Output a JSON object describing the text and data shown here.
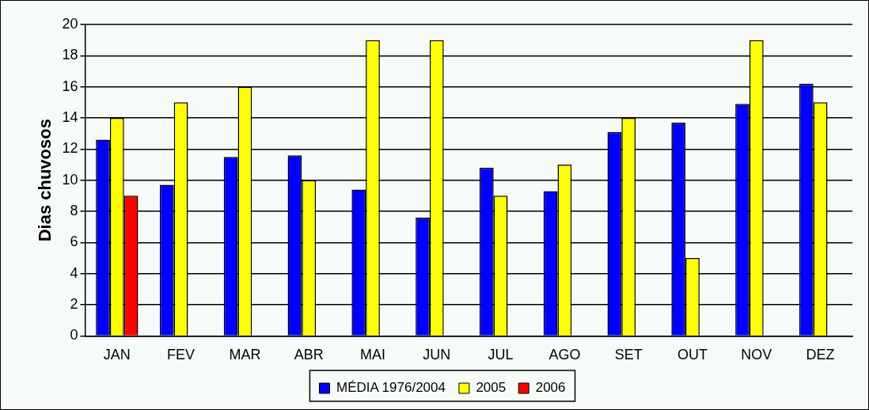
{
  "chart_data": {
    "type": "bar",
    "ylabel": "Dias chuvosos",
    "categories": [
      "JAN",
      "FEV",
      "MAR",
      "ABR",
      "MAI",
      "JUN",
      "JUL",
      "AGO",
      "SET",
      "OUT",
      "NOV",
      "DEZ"
    ],
    "series": [
      {
        "name": "MÉDIA 1976/2004",
        "color": "#0000ff",
        "values": [
          12.6,
          9.7,
          11.5,
          11.6,
          9.4,
          7.6,
          10.8,
          9.3,
          13.1,
          13.7,
          14.9,
          16.2
        ]
      },
      {
        "name": "2005",
        "color": "#ffff00",
        "values": [
          14,
          15,
          16,
          10,
          19,
          19,
          9,
          11,
          14,
          5,
          19,
          15
        ]
      },
      {
        "name": "2006",
        "color": "#ff0000",
        "values": [
          9,
          null,
          null,
          null,
          null,
          null,
          null,
          null,
          null,
          null,
          null,
          null
        ]
      }
    ],
    "ylim": [
      0,
      20
    ],
    "yticks": [
      0,
      2,
      4,
      6,
      8,
      10,
      12,
      14,
      16,
      18,
      20
    ],
    "grid": "y",
    "legend": "bottom"
  }
}
